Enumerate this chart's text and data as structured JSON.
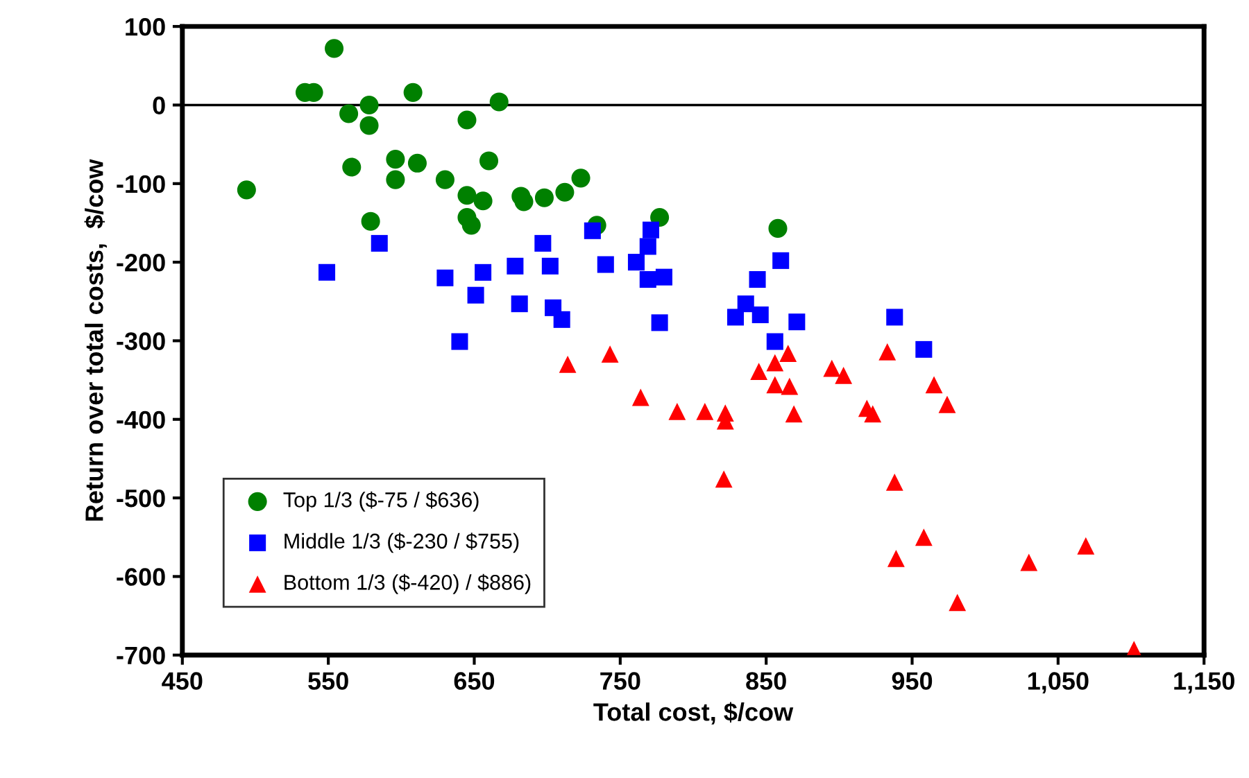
{
  "chart_data": {
    "type": "scatter",
    "xlabel": "Total cost, $/cow",
    "ylabel": "Return over total costs,  $/cow",
    "xlim": [
      450,
      1150
    ],
    "xticks": [
      450,
      550,
      650,
      750,
      850,
      950,
      {
        "value": 1050,
        "label": "1,050"
      },
      {
        "value": 1150,
        "label": "1,150"
      }
    ],
    "ylim": [
      -700,
      100
    ],
    "yticks": [
      -700,
      -600,
      -500,
      -400,
      -300,
      -200,
      -100,
      0,
      100
    ],
    "grid": false,
    "legend": "bottom left",
    "ref_lines": [
      {
        "axis": "y",
        "value": 0,
        "color": "#000000",
        "line_style": "solid"
      }
    ],
    "series": [
      {
        "name": "Top 1/3 ($-75 / $636)",
        "color": "#008000",
        "marker": "circle",
        "x": [
          494,
          554,
          534,
          540,
          564,
          578,
          578,
          566,
          596,
          596,
          611,
          608,
          579,
          630,
          645,
          645,
          648,
          656,
          645,
          660,
          667,
          682,
          684,
          698,
          712,
          723,
          734,
          777,
          858
        ],
        "values": [
          -108,
          72,
          16,
          16,
          -11,
          0,
          -26,
          -79,
          -69,
          -95,
          -74,
          16,
          -148,
          -95,
          -115,
          -143,
          -153,
          -122,
          -19,
          -71,
          4,
          -116,
          -123,
          -118,
          -111,
          -93,
          -153,
          -143,
          -157
        ]
      },
      {
        "name": "Middle 1/3 ($-230 / $755)",
        "color": "#0000ff",
        "marker": "square",
        "x": [
          549,
          585,
          630,
          656,
          651,
          640,
          678,
          681,
          697,
          702,
          704,
          710,
          731,
          740,
          761,
          769,
          771,
          769,
          780,
          777,
          860,
          844,
          836,
          829,
          846,
          871,
          856,
          938,
          958
        ],
        "values": [
          -213,
          -176,
          -220,
          -213,
          -242,
          -301,
          -205,
          -253,
          -176,
          -205,
          -258,
          -273,
          -160,
          -203,
          -200,
          -180,
          -159,
          -222,
          -219,
          -277,
          -198,
          -222,
          -253,
          -270,
          -267,
          -276,
          -301,
          -270,
          -311
        ]
      },
      {
        "name": "Bottom 1/3 ($-420) / $886)",
        "color": "#ff0000",
        "marker": "triangle",
        "x": [
          714,
          743,
          764,
          789,
          808,
          822,
          822,
          821,
          845,
          856,
          865,
          856,
          866,
          869,
          895,
          903,
          919,
          923,
          933,
          938,
          958,
          939,
          965,
          974,
          981,
          1030,
          1069,
          1102
        ],
        "values": [
          -330,
          -317,
          -372,
          -390,
          -390,
          -392,
          -402,
          -476,
          -339,
          -328,
          -316,
          -356,
          -358,
          -393,
          -335,
          -344,
          -386,
          -393,
          -314,
          -480,
          -550,
          -577,
          -356,
          -381,
          -633,
          -582,
          -561,
          -693
        ]
      }
    ]
  }
}
